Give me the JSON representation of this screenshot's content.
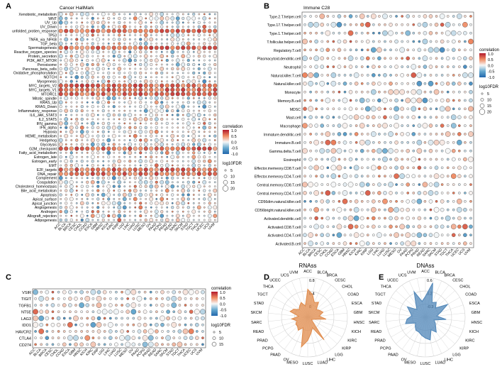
{
  "panels": [
    {
      "label": "A",
      "type": "scatter",
      "title": "Cancer HallMark",
      "x": [
        "ACC",
        "BLCA",
        "BRCA",
        "CESC",
        "CHOL",
        "COAD",
        "ESCA",
        "GBM",
        "HNSC",
        "KICH",
        "KIRC",
        "KIRP",
        "LGG",
        "LIHC",
        "LUAD",
        "LUSC",
        "MESO",
        "OV",
        "PAAD",
        "PCPG",
        "PRAD",
        "READ",
        "SARC",
        "SKCM",
        "STAD",
        "TGCT",
        "THCA",
        "UCEC",
        "UCS",
        "UVM"
      ],
      "y": [
        "Xenobiotic_metabolism",
        "WNT",
        "UV_Up",
        "UV_Down",
        "unfolded_protien_response",
        "TP53",
        "TNFA_via_NFKB",
        "TGF_beta",
        "Spermatogenesis",
        "Reactive_oxygen_species",
        "Protein_secretion",
        "PI3K_AKT_MTOR",
        "Peroxisome",
        "Pancreas_beta_cells",
        "Oxidative_phosphorylation",
        "NOTCH",
        "Myogenesis",
        "MYC_targets_V2",
        "MYC_targets_V1",
        "MTORC1",
        "Mitotic_spindle",
        "KRAS_Up",
        "KRAS_Down",
        "Inflammatory_response",
        "IL6_JAK_STAT3",
        "IL2_STAT5",
        "IFN_gamma",
        "IFN_alpha",
        "Hypoxia",
        "HEME_metabolism",
        "Hedgehog",
        "Glycolysis",
        "G2M_checkpoint",
        "Fatty_acid_metabolism",
        "Estrogen_late",
        "Estrogen_early",
        "EMT",
        "E2F_targets",
        "DNA_repair",
        "Complement",
        "Coagulation",
        "Cholesterol_homeostasis",
        "Bile_acid_metabolism",
        "Apoptosis",
        "Apical_surface",
        "Apical_junction",
        "Angiogenesis",
        "Androgen",
        "Allograft_rejection",
        "Adipogenesis"
      ],
      "highlight_rows": [
        "unfolded_protien_response",
        "Spermatogenesis",
        "MYC_targets_V2",
        "MYC_targets_V1",
        "MTORC1",
        "G2M_checkpoint",
        "E2F_targets",
        "DNA_repair"
      ],
      "legend": {
        "title": "correlation",
        "ticks": [
          "1.0",
          "0.5",
          "0.0",
          "-0.5",
          "-1.0"
        ],
        "size_title": "log10FDR",
        "sizes": [
          "5",
          "10",
          "15",
          "20"
        ]
      }
    },
    {
      "label": "B",
      "type": "scatter",
      "title": "Immune C28",
      "x": [
        "ACC",
        "BLCA",
        "BRCA",
        "CESC",
        "CHOL",
        "COAD",
        "ESCA",
        "GBM",
        "HNSC",
        "KICH",
        "KIRC",
        "KIRP",
        "LGG",
        "LIHC",
        "LUAD",
        "LUSC",
        "MESO",
        "OV",
        "PAAD",
        "PCPG",
        "PRAD",
        "READ",
        "SARC",
        "SKCM",
        "STAD",
        "TGCT",
        "THCA",
        "UCEC",
        "UCS",
        "UVM"
      ],
      "y": [
        "Type.2.T.helper.cell",
        "Type.17.T.helper.cell",
        "Type.1.T.helper.cell",
        "T.follicular.helper.cell",
        "Regulatory.T.cell",
        "Plasmacytoid.dendritic.cell",
        "Neutrophil",
        "Natural.killer.T.cell",
        "Natural.killer.cell",
        "Monocyte",
        "Memory.B.cell",
        "MDSC",
        "Mast.cell",
        "Macrophage",
        "Immature.dendritic.cell",
        "Immature.B.cell",
        "Gamma.delta.T.cell",
        "Eosinophil",
        "Effector.memeory.CD8.T.cell",
        "Effector.memeory.CD4.T.cell",
        "Central.memory.CD8.T.cell",
        "Central.memory.CD4.T.cell",
        "CD56dim.natural.killer.cell",
        "CD56bright.natural.killer.cell",
        "Activated.dendritic.cell",
        "Activated.CD8.T.cell",
        "Activated.CD4.T.cell",
        "Activated.B.cell"
      ],
      "legend": {
        "title": "correlation",
        "ticks": [
          "1.0",
          "0.5",
          "0.0",
          "-0.5",
          "-1.0"
        ],
        "size_title": "log10FDR",
        "sizes": [
          "5",
          "10",
          "15",
          "20"
        ]
      }
    },
    {
      "label": "C",
      "type": "scatter",
      "title": "",
      "x": [
        "ACC",
        "BLCA",
        "BRCA",
        "CESC",
        "CHOL",
        "COAD",
        "ESCA",
        "GBM",
        "HNSC",
        "KICH",
        "KIRC",
        "KIRP",
        "LGG",
        "LIHC",
        "LUAD",
        "LUSC",
        "MESO",
        "OV",
        "PAAD",
        "PCPG",
        "PRAD",
        "READ",
        "SARC",
        "SKCM",
        "STAD",
        "TGCT",
        "THCA",
        "UCEC",
        "UCS",
        "UVM"
      ],
      "y": [
        "VSIR",
        "TIGIT",
        "TGFB1",
        "NT5E",
        "LAG3",
        "IDO1",
        "HAVCR2",
        "CTLA4",
        "CD274"
      ],
      "legend": {
        "title": "correlation",
        "ticks": [
          "1.0",
          "0.5",
          "0.0",
          "-0.5",
          "-1.0"
        ],
        "size_title": "log10FDR",
        "sizes": [
          "5",
          "10",
          "15"
        ]
      }
    },
    {
      "label": "D",
      "type": "radar",
      "title": "RNAss",
      "color": "#e08a4a",
      "rings": [
        "0.8",
        "0.4",
        "0"
      ],
      "categories": [
        "ACC",
        "BLCA",
        "BRCA",
        "CESC",
        "CHOL",
        "COAD",
        "ESCA",
        "GBM",
        "HNSC",
        "KICH",
        "KIRC",
        "KIRP",
        "LGG",
        "LIHC",
        "LUAD",
        "LUSC",
        "MESO",
        "OV",
        "PAAD",
        "PCPG",
        "PRAD",
        "READ",
        "SARC",
        "SKCM",
        "STAD",
        "TGCT",
        "THCA",
        "UCEC",
        "UCS",
        "UVM"
      ],
      "values": [
        0.55,
        0.45,
        0.3,
        0.35,
        0.2,
        0.25,
        0.3,
        0.2,
        0.35,
        0.1,
        0.05,
        0.1,
        0.55,
        0.2,
        0.3,
        0.45,
        0.6,
        0.2,
        0.3,
        0.25,
        0.25,
        0.2,
        0.3,
        0.15,
        0.35,
        0.3,
        0.2,
        0.25,
        0.3,
        0.2
      ]
    },
    {
      "label": "E",
      "type": "radar",
      "title": "DNAss",
      "color": "#4f86b8",
      "rings": [
        "0.6",
        "0.2",
        "-0.2"
      ],
      "categories": [
        "ACC",
        "BLCA",
        "BRCA",
        "CESC",
        "CHOL",
        "COAD",
        "ESCA",
        "GBM",
        "HNSC",
        "KICH",
        "KIRC",
        "KIRP",
        "LGG",
        "LIHC",
        "LUAD",
        "LUSC",
        "MESO",
        "OV",
        "PAAD",
        "PCPG",
        "PRAD",
        "READ",
        "SARC",
        "SKCM",
        "STAD",
        "TGCT",
        "THCA",
        "UCEC",
        "UCS",
        "UVM"
      ],
      "values": [
        0.2,
        0.5,
        0.1,
        0.15,
        0.05,
        0.3,
        0.1,
        0.0,
        0.2,
        -0.05,
        0.0,
        0.05,
        0.15,
        0.05,
        0.25,
        0.2,
        0.15,
        0.1,
        0.1,
        0.05,
        0.0,
        0.2,
        0.15,
        0.05,
        0.1,
        0.2,
        0.0,
        0.1,
        0.35,
        0.1
      ]
    }
  ]
}
